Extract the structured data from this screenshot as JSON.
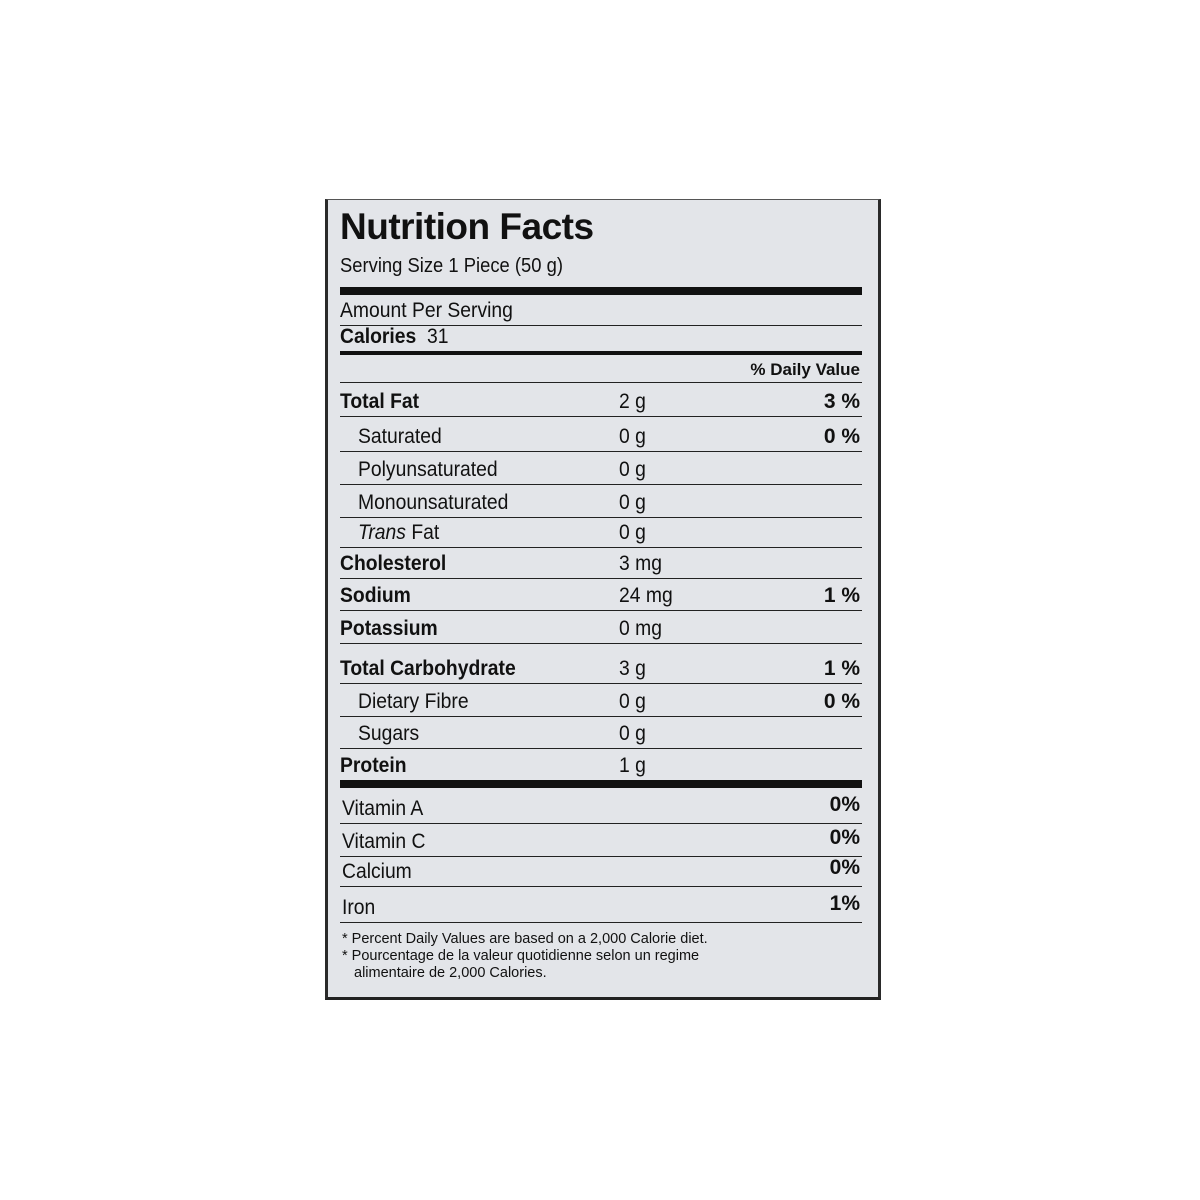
{
  "title": "Nutrition Facts",
  "serving_size": "Serving Size 1 Piece (50 g)",
  "amount_per_serving": "Amount Per Serving",
  "calories_label": "Calories",
  "calories_value": "31",
  "daily_value_header": "% Daily Value",
  "nutrients": [
    {
      "label": "Total Fat",
      "amount": "2 g",
      "dv": "3 %"
    },
    {
      "label": "Saturated",
      "amount": "0 g",
      "dv": "0 %"
    },
    {
      "label": "Polyunsaturated",
      "amount": "0 g",
      "dv": ""
    },
    {
      "label": "Monounsaturated",
      "amount": "0 g",
      "dv": ""
    },
    {
      "label_italic": "Trans",
      "label": "Fat",
      "amount": "0 g",
      "dv": ""
    },
    {
      "label": "Cholesterol",
      "amount": "3 mg",
      "dv": ""
    },
    {
      "label": "Sodium",
      "amount": "24 mg",
      "dv": "1 %"
    },
    {
      "label": "Potassium",
      "amount": "0 mg",
      "dv": ""
    },
    {
      "label": "Total Carbohydrate",
      "amount": "3 g",
      "dv": "1 %"
    },
    {
      "label": "Dietary Fibre",
      "amount": "0 g",
      "dv": "0 %"
    },
    {
      "label": "Sugars",
      "amount": "0 g",
      "dv": ""
    },
    {
      "label": "Protein",
      "amount": "1 g",
      "dv": ""
    }
  ],
  "vitamins": [
    {
      "label": "Vitamin A",
      "dv": "0%"
    },
    {
      "label": "Vitamin C",
      "dv": "0%"
    },
    {
      "label": "Calcium",
      "dv": "0%"
    },
    {
      "label": "Iron",
      "dv": "1%"
    }
  ],
  "footnotes": [
    "* Percent Daily Values are based on a 2,000 Calorie diet.",
    "* Pourcentage de la valeur quotidienne selon un regime",
    "alimentaire de 2,000 Calories."
  ]
}
